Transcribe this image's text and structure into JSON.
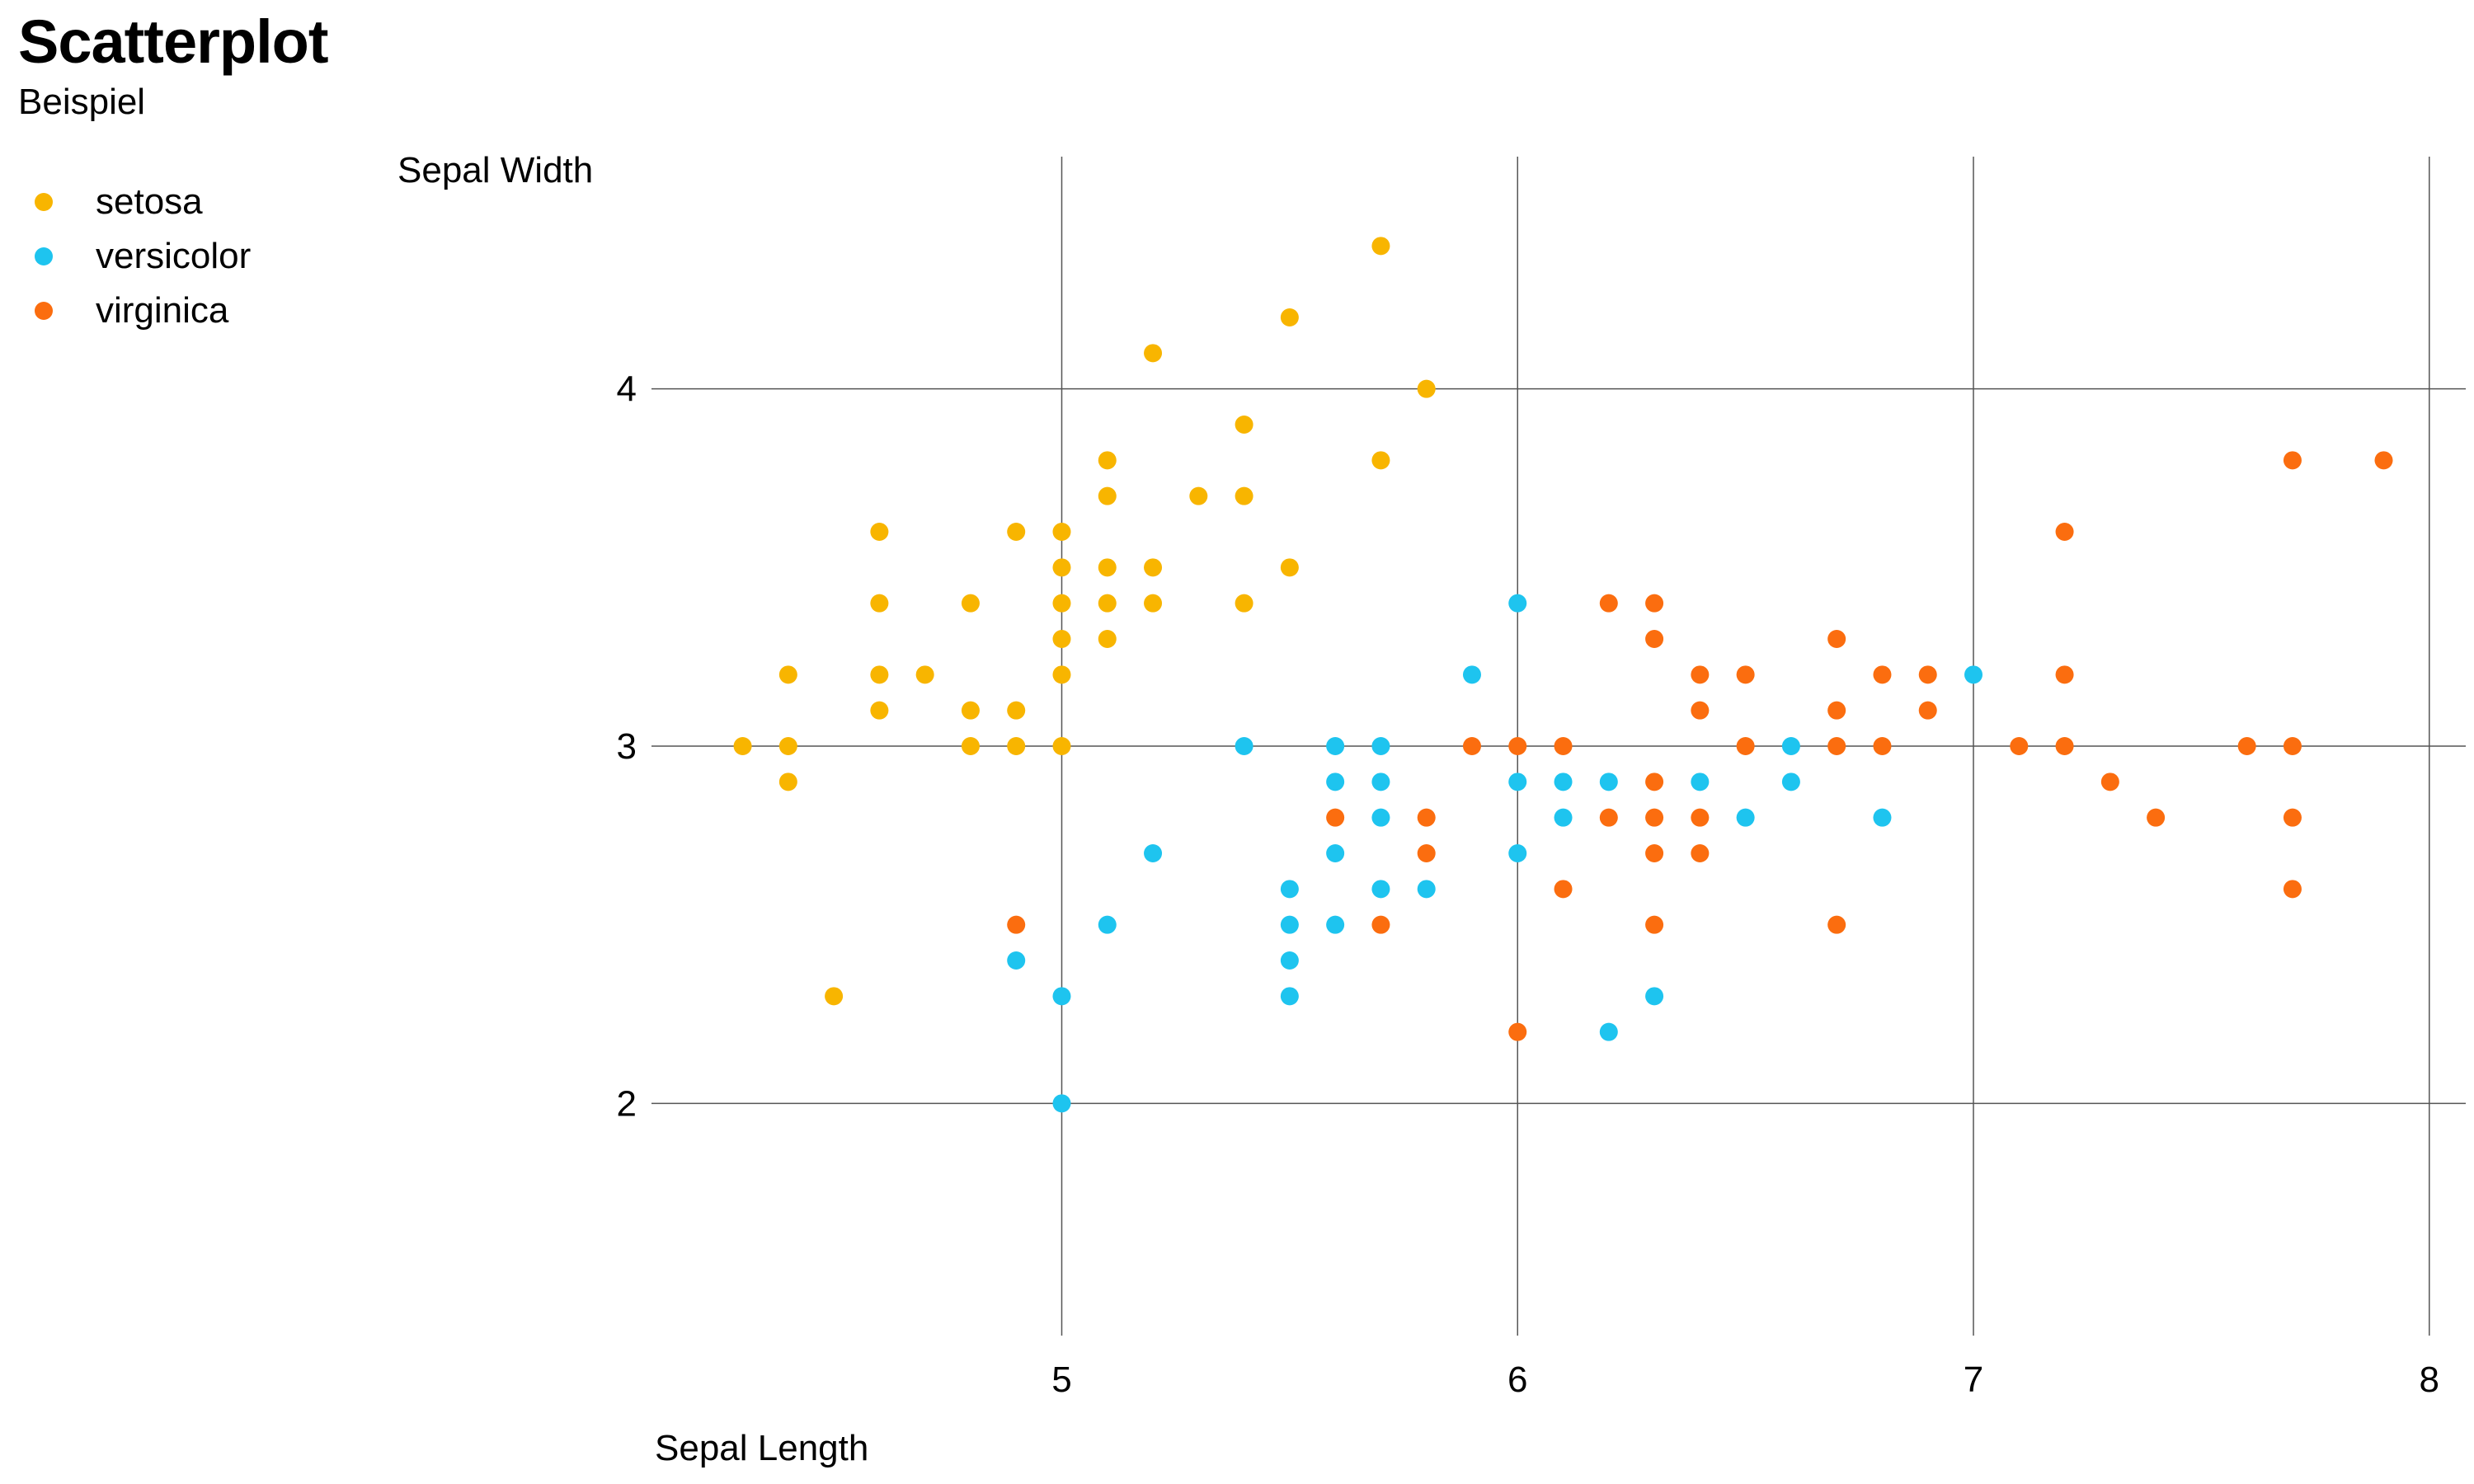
{
  "title": "Scatterplot",
  "subtitle": "Beispiel",
  "colors": {
    "setosa": "#f8b500",
    "versicolor": "#1ec4ef",
    "virginica": "#fb6d0f",
    "grid": "#555555"
  },
  "chart_data": {
    "type": "scatter",
    "title": "Scatterplot",
    "subtitle": "Beispiel",
    "xlabel": "Sepal Length",
    "ylabel": "Sepal Width",
    "xlim": [
      4.1,
      8.08
    ],
    "ylim": [
      1.35,
      4.65
    ],
    "xticks": [
      5,
      6,
      7,
      8
    ],
    "yticks": [
      2,
      3,
      4
    ],
    "grid": true,
    "legend_position": "top-left",
    "series": [
      {
        "name": "setosa",
        "color": "#f8b500",
        "points": [
          [
            4.3,
            3.0
          ],
          [
            4.4,
            2.9
          ],
          [
            4.4,
            3.0
          ],
          [
            4.4,
            3.2
          ],
          [
            4.5,
            2.3
          ],
          [
            4.6,
            3.1
          ],
          [
            4.6,
            3.2
          ],
          [
            4.6,
            3.4
          ],
          [
            4.6,
            3.6
          ],
          [
            4.7,
            3.2
          ],
          [
            4.8,
            3.0
          ],
          [
            4.8,
            3.1
          ],
          [
            4.8,
            3.4
          ],
          [
            4.9,
            3.0
          ],
          [
            4.9,
            3.1
          ],
          [
            4.9,
            3.6
          ],
          [
            5.0,
            3.0
          ],
          [
            5.0,
            3.2
          ],
          [
            5.0,
            3.3
          ],
          [
            5.0,
            3.4
          ],
          [
            5.0,
            3.5
          ],
          [
            5.0,
            3.6
          ],
          [
            5.1,
            3.3
          ],
          [
            5.1,
            3.4
          ],
          [
            5.1,
            3.5
          ],
          [
            5.1,
            3.7
          ],
          [
            5.1,
            3.8
          ],
          [
            5.2,
            3.4
          ],
          [
            5.2,
            3.5
          ],
          [
            5.2,
            4.1
          ],
          [
            5.3,
            3.7
          ],
          [
            5.4,
            3.4
          ],
          [
            5.4,
            3.7
          ],
          [
            5.4,
            3.9
          ],
          [
            5.5,
            3.5
          ],
          [
            5.5,
            4.2
          ],
          [
            5.7,
            3.8
          ],
          [
            5.7,
            4.4
          ],
          [
            5.8,
            4.0
          ]
        ]
      },
      {
        "name": "versicolor",
        "color": "#1ec4ef",
        "points": [
          [
            4.9,
            2.4
          ],
          [
            5.0,
            2.0
          ],
          [
            5.0,
            2.3
          ],
          [
            5.1,
            2.5
          ],
          [
            5.2,
            2.7
          ],
          [
            5.4,
            3.0
          ],
          [
            5.5,
            2.3
          ],
          [
            5.5,
            2.4
          ],
          [
            5.5,
            2.5
          ],
          [
            5.5,
            2.6
          ],
          [
            5.6,
            2.5
          ],
          [
            5.6,
            2.7
          ],
          [
            5.6,
            2.9
          ],
          [
            5.6,
            3.0
          ],
          [
            5.7,
            2.6
          ],
          [
            5.7,
            2.8
          ],
          [
            5.7,
            2.9
          ],
          [
            5.7,
            3.0
          ],
          [
            5.8,
            2.6
          ],
          [
            5.9,
            3.2
          ],
          [
            6.0,
            2.7
          ],
          [
            6.0,
            2.9
          ],
          [
            6.0,
            3.4
          ],
          [
            6.1,
            2.8
          ],
          [
            6.1,
            2.9
          ],
          [
            6.2,
            2.2
          ],
          [
            6.2,
            2.9
          ],
          [
            6.3,
            2.3
          ],
          [
            6.4,
            2.9
          ],
          [
            6.5,
            2.8
          ],
          [
            6.6,
            2.9
          ],
          [
            6.6,
            3.0
          ],
          [
            6.8,
            2.8
          ],
          [
            7.0,
            3.2
          ]
        ]
      },
      {
        "name": "virginica",
        "color": "#fb6d0f",
        "points": [
          [
            4.9,
            2.5
          ],
          [
            5.6,
            2.8
          ],
          [
            5.7,
            2.5
          ],
          [
            5.8,
            2.7
          ],
          [
            5.8,
            2.8
          ],
          [
            5.9,
            3.0
          ],
          [
            6.0,
            2.2
          ],
          [
            6.0,
            3.0
          ],
          [
            6.1,
            2.6
          ],
          [
            6.1,
            3.0
          ],
          [
            6.2,
            2.8
          ],
          [
            6.2,
            3.4
          ],
          [
            6.3,
            2.5
          ],
          [
            6.3,
            2.7
          ],
          [
            6.3,
            2.8
          ],
          [
            6.3,
            2.9
          ],
          [
            6.3,
            3.3
          ],
          [
            6.3,
            3.4
          ],
          [
            6.4,
            2.7
          ],
          [
            6.4,
            2.8
          ],
          [
            6.4,
            3.1
          ],
          [
            6.4,
            3.2
          ],
          [
            6.5,
            3.0
          ],
          [
            6.5,
            3.2
          ],
          [
            6.7,
            2.5
          ],
          [
            6.7,
            3.0
          ],
          [
            6.7,
            3.1
          ],
          [
            6.7,
            3.3
          ],
          [
            6.8,
            3.0
          ],
          [
            6.8,
            3.2
          ],
          [
            6.9,
            3.1
          ],
          [
            6.9,
            3.2
          ],
          [
            7.1,
            3.0
          ],
          [
            7.2,
            3.0
          ],
          [
            7.2,
            3.2
          ],
          [
            7.2,
            3.6
          ],
          [
            7.3,
            2.9
          ],
          [
            7.4,
            2.8
          ],
          [
            7.6,
            3.0
          ],
          [
            7.7,
            2.6
          ],
          [
            7.7,
            2.8
          ],
          [
            7.7,
            3.0
          ],
          [
            7.7,
            3.8
          ],
          [
            7.9,
            3.8
          ]
        ]
      }
    ]
  }
}
